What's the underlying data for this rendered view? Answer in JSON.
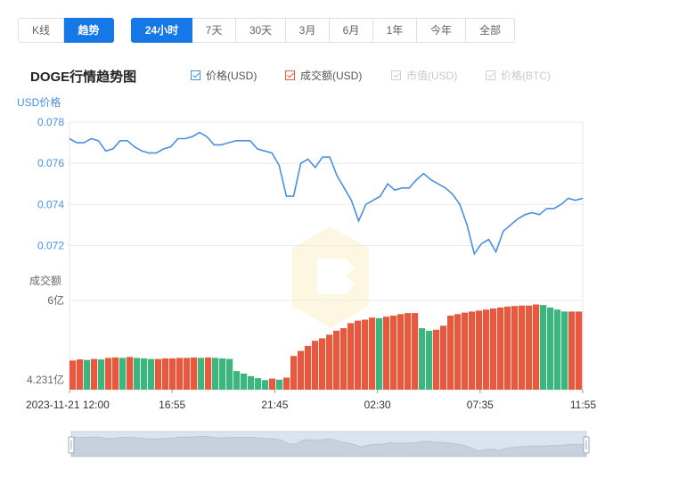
{
  "tabs_view": [
    {
      "label": "K线",
      "active": false
    },
    {
      "label": "趋势",
      "active": true
    }
  ],
  "tabs_range": [
    {
      "label": "24小时",
      "active": true
    },
    {
      "label": "7天",
      "active": false
    },
    {
      "label": "30天",
      "active": false
    },
    {
      "label": "3月",
      "active": false
    },
    {
      "label": "6月",
      "active": false
    },
    {
      "label": "1年",
      "active": false
    },
    {
      "label": "今年",
      "active": false
    },
    {
      "label": "全部",
      "active": false
    }
  ],
  "title": "DOGE行情趋势图",
  "legend": [
    {
      "label": "价格(USD)",
      "checked": true,
      "enabled": true,
      "color": "#4a90e2"
    },
    {
      "label": "成交额(USD)",
      "checked": true,
      "enabled": true,
      "color": "#e8583e"
    },
    {
      "label": "市值(USD)",
      "checked": true,
      "enabled": false,
      "color": "#c8c8c8"
    },
    {
      "label": "价格(BTC)",
      "checked": true,
      "enabled": false,
      "color": "#c8c8c8"
    }
  ],
  "chart_data": {
    "type": "line",
    "price_axis_label": "USD价格",
    "price_ticks": [
      "0.078",
      "0.076",
      "0.074",
      "0.072"
    ],
    "price_ylim": [
      0.0715,
      0.078
    ],
    "price_color": "#4a90e2",
    "volume_axis_label": "成交额",
    "volume_ticks": [
      "6亿",
      "4.231亿"
    ],
    "volume_ylim": [
      4.231,
      6.0
    ],
    "volume_up_color": "#3cb67e",
    "volume_down_color": "#e8583e",
    "x_ticks": [
      "2023-11-21 12:00",
      "16:55",
      "21:45",
      "02:30",
      "07:35",
      "11:55"
    ],
    "price_series": [
      0.0772,
      0.077,
      0.077,
      0.0772,
      0.0771,
      0.0766,
      0.0767,
      0.0771,
      0.0771,
      0.0768,
      0.0766,
      0.0765,
      0.0765,
      0.0767,
      0.0768,
      0.0772,
      0.0772,
      0.0773,
      0.0775,
      0.0773,
      0.0769,
      0.0769,
      0.077,
      0.0771,
      0.0771,
      0.0771,
      0.0767,
      0.0766,
      0.0765,
      0.0759,
      0.0744,
      0.0744,
      0.076,
      0.0762,
      0.0758,
      0.0763,
      0.0763,
      0.0754,
      0.0748,
      0.0742,
      0.0732,
      0.074,
      0.0742,
      0.0744,
      0.075,
      0.0747,
      0.0748,
      0.0748,
      0.0752,
      0.0755,
      0.0752,
      0.075,
      0.0748,
      0.0745,
      0.074,
      0.073,
      0.0716,
      0.0721,
      0.0723,
      0.0717,
      0.0727,
      0.073,
      0.0733,
      0.0735,
      0.0736,
      0.0735,
      0.0738,
      0.0738,
      0.074,
      0.0743,
      0.0742,
      0.0743
    ],
    "volume_series": [
      4.81,
      4.83,
      4.82,
      4.84,
      4.83,
      4.86,
      4.87,
      4.86,
      4.88,
      4.86,
      4.85,
      4.84,
      4.84,
      4.85,
      4.85,
      4.86,
      4.86,
      4.87,
      4.86,
      4.87,
      4.86,
      4.85,
      4.84,
      4.6,
      4.55,
      4.5,
      4.46,
      4.42,
      4.45,
      4.43,
      4.47,
      4.9,
      5.0,
      5.1,
      5.2,
      5.25,
      5.32,
      5.4,
      5.45,
      5.55,
      5.6,
      5.62,
      5.66,
      5.65,
      5.68,
      5.7,
      5.73,
      5.75,
      5.75,
      5.45,
      5.4,
      5.42,
      5.5,
      5.7,
      5.73,
      5.76,
      5.78,
      5.8,
      5.82,
      5.84,
      5.86,
      5.88,
      5.89,
      5.9,
      5.9,
      5.92,
      5.91,
      5.86,
      5.82,
      5.78,
      5.78,
      5.78
    ]
  }
}
